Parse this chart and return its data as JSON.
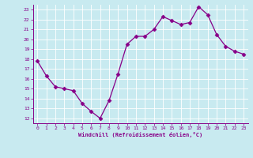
{
  "x": [
    0,
    1,
    2,
    3,
    4,
    5,
    6,
    7,
    8,
    9,
    10,
    11,
    12,
    13,
    14,
    15,
    16,
    17,
    18,
    19,
    20,
    21,
    22,
    23
  ],
  "y": [
    17.8,
    16.3,
    15.2,
    15.0,
    14.8,
    13.5,
    12.7,
    12.0,
    13.8,
    16.5,
    19.5,
    20.3,
    20.3,
    21.0,
    22.3,
    21.9,
    21.5,
    21.7,
    23.3,
    22.5,
    20.5,
    19.3,
    18.8,
    18.5
  ],
  "line_color": "#880088",
  "marker": "D",
  "marker_size": 2.5,
  "bg_color": "#c8eaf0",
  "grid_color": "#ffffff",
  "xlabel": "Windchill (Refroidissement éolien,°C)",
  "xlabel_color": "#880088",
  "tick_color": "#880088",
  "spine_color": "#880088",
  "ylim": [
    11.5,
    23.5
  ],
  "xlim": [
    -0.5,
    23.5
  ],
  "yticks": [
    12,
    13,
    14,
    15,
    16,
    17,
    18,
    19,
    20,
    21,
    22,
    23
  ],
  "xticks": [
    0,
    1,
    2,
    3,
    4,
    5,
    6,
    7,
    8,
    9,
    10,
    11,
    12,
    13,
    14,
    15,
    16,
    17,
    18,
    19,
    20,
    21,
    22,
    23
  ]
}
